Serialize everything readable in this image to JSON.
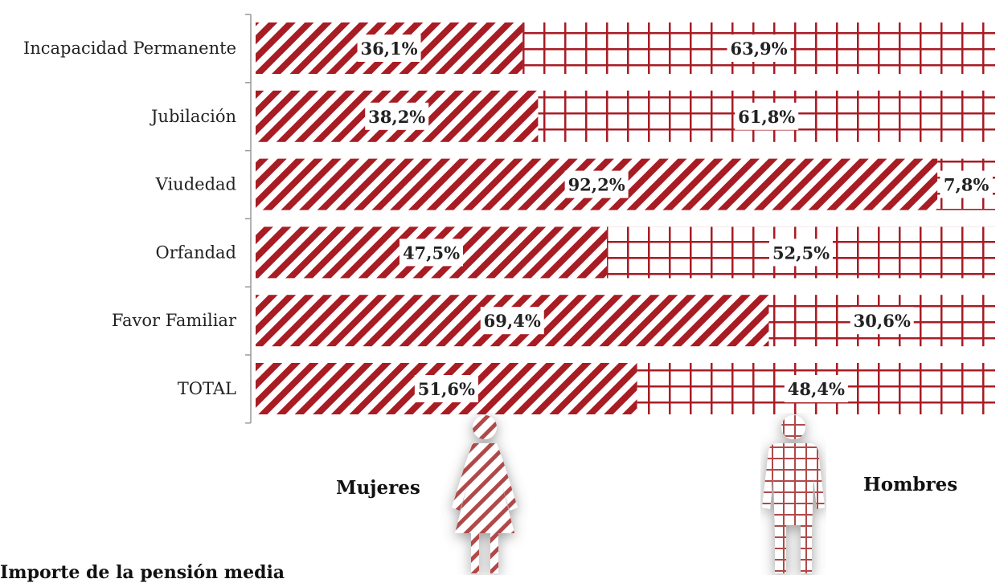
{
  "chart_data": {
    "type": "bar",
    "orientation": "horizontal",
    "stacked": "percent",
    "categories": [
      "Incapacidad Permanente",
      "Jubilación",
      "Viudedad",
      "Orfandad",
      "Favor Familiar",
      "TOTAL"
    ],
    "series": [
      {
        "name": "Mujeres",
        "values": [
          36.1,
          38.2,
          92.2,
          47.5,
          69.4,
          51.6
        ],
        "labels": [
          "36,1%",
          "38,2%",
          "92,2%",
          "47,5%",
          "69,4%",
          "51,6%"
        ]
      },
      {
        "name": "Hombres",
        "values": [
          63.9,
          61.8,
          7.8,
          52.5,
          30.6,
          48.4
        ],
        "labels": [
          "63,9%",
          "61,8%",
          "7,8%",
          "52,5%",
          "30,6%",
          "48,4%"
        ]
      }
    ],
    "xlim": [
      0,
      100
    ],
    "legend": "bottom, shown as pictograms",
    "grid": false,
    "colors": {
      "mujeres": "#a81c24",
      "hombres": "#a81c24",
      "background": "#ffffff"
    }
  },
  "legend": {
    "mujeres_label": "Mujeres",
    "hombres_label": "Hombres"
  },
  "footer_text": "Importe de la pensión media"
}
